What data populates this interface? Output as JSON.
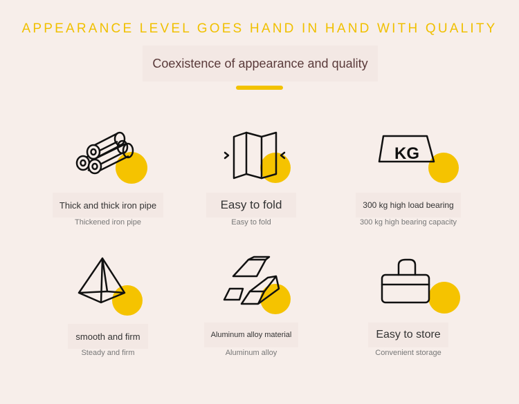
{
  "header": {
    "headline": "APPEARANCE LEVEL GOES HAND IN HAND WITH QUALITY",
    "subtitle": "Coexistence of appearance and quality"
  },
  "colors": {
    "accent": "#f2c200",
    "background": "#f7eeea",
    "label_box": "#f3e8e4",
    "headline": "#f0c000",
    "subtitle": "#5a3a3a"
  },
  "features": [
    {
      "icon": "iron-pipe-icon",
      "title": "Thick and thick iron pipe",
      "caption": "Thickened iron pipe"
    },
    {
      "icon": "fold-icon",
      "title": "Easy to fold",
      "caption": "Easy to fold"
    },
    {
      "icon": "kg-weight-icon",
      "title": "300 kg high load bearing",
      "caption": "300 kg high bearing capacity",
      "icon_text": "KG"
    },
    {
      "icon": "pyramid-icon",
      "title": "smooth and firm",
      "caption": "Steady and firm"
    },
    {
      "icon": "aluminum-bars-icon",
      "title": "Aluminum alloy material",
      "caption": "Aluminum alloy"
    },
    {
      "icon": "bag-icon",
      "title": "Easy to store",
      "caption": "Convenient storage"
    }
  ]
}
